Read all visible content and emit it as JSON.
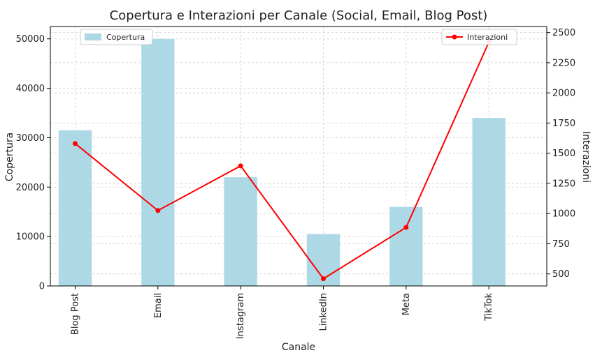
{
  "chart_data": {
    "type": "bar+line",
    "title": "Copertura e Interazioni per Canale (Social, Email, Blog Post)",
    "xlabel": "Canale",
    "ylabel_left": "Copertura",
    "ylabel_right": "Interazioni",
    "categories": [
      "Blog Post",
      "Email",
      "Instagram",
      "LinkedIn",
      "Meta",
      "TikTok"
    ],
    "series": [
      {
        "name": "Copertura",
        "type": "bar",
        "axis": "left",
        "color": "#add8e6",
        "values": [
          31500,
          50000,
          22000,
          10500,
          16000,
          34000
        ]
      },
      {
        "name": "Interazioni",
        "type": "line",
        "axis": "right",
        "color": "#ff0000",
        "values": [
          1580,
          1025,
          1395,
          460,
          885,
          2420
        ]
      }
    ],
    "ylim_left": [
      0,
      52500
    ],
    "ylim_right": [
      400,
      2550
    ],
    "yticks_left": [
      "0",
      "10000",
      "20000",
      "30000",
      "40000",
      "50000"
    ],
    "yticks_right": [
      "500",
      "750",
      "1000",
      "1250",
      "1500",
      "1750",
      "2000",
      "2250",
      "2500"
    ],
    "grid": true,
    "legend_left_placement": "top-left",
    "legend_right_placement": "top-right"
  }
}
